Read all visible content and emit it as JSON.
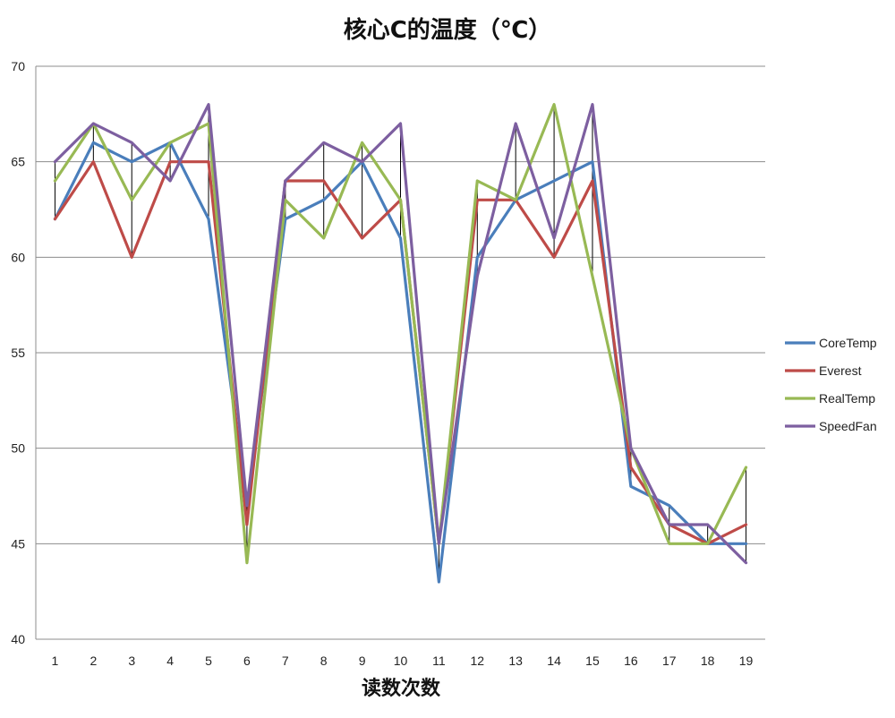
{
  "chart_data": {
    "type": "line",
    "title": "核心C的温度（℃）",
    "xlabel": "读数次数",
    "ylabel": "",
    "ylim": [
      40,
      70
    ],
    "yticks": [
      40,
      45,
      50,
      55,
      60,
      65,
      70
    ],
    "grid": true,
    "legend_position": "right",
    "hi_lo_lines": true,
    "categories": [
      "1",
      "2",
      "3",
      "4",
      "5",
      "6",
      "7",
      "8",
      "9",
      "10",
      "11",
      "12",
      "13",
      "14",
      "15",
      "16",
      "17",
      "18",
      "19"
    ],
    "series": [
      {
        "name": "CoreTemp",
        "color": "#4a7ebb",
        "values": [
          62,
          66,
          65,
          66,
          62,
          47,
          62,
          63,
          65,
          61,
          43,
          60,
          63,
          64,
          65,
          48,
          47,
          45,
          45
        ]
      },
      {
        "name": "Everest",
        "color": "#be4b48",
        "values": [
          62,
          65,
          60,
          65,
          65,
          46,
          64,
          64,
          61,
          63,
          45,
          63,
          63,
          60,
          64,
          49,
          46,
          45,
          46
        ]
      },
      {
        "name": "RealTemp",
        "color": "#98b954",
        "values": [
          64,
          67,
          63,
          66,
          67,
          44,
          63,
          61,
          66,
          63,
          45,
          64,
          63,
          68,
          59,
          50,
          45,
          45,
          49
        ]
      },
      {
        "name": "SpeedFan",
        "color": "#7d5fa0",
        "values": [
          65,
          67,
          66,
          64,
          68,
          47,
          64,
          66,
          65,
          67,
          45,
          59,
          67,
          61,
          68,
          50,
          46,
          46,
          44
        ]
      }
    ]
  }
}
